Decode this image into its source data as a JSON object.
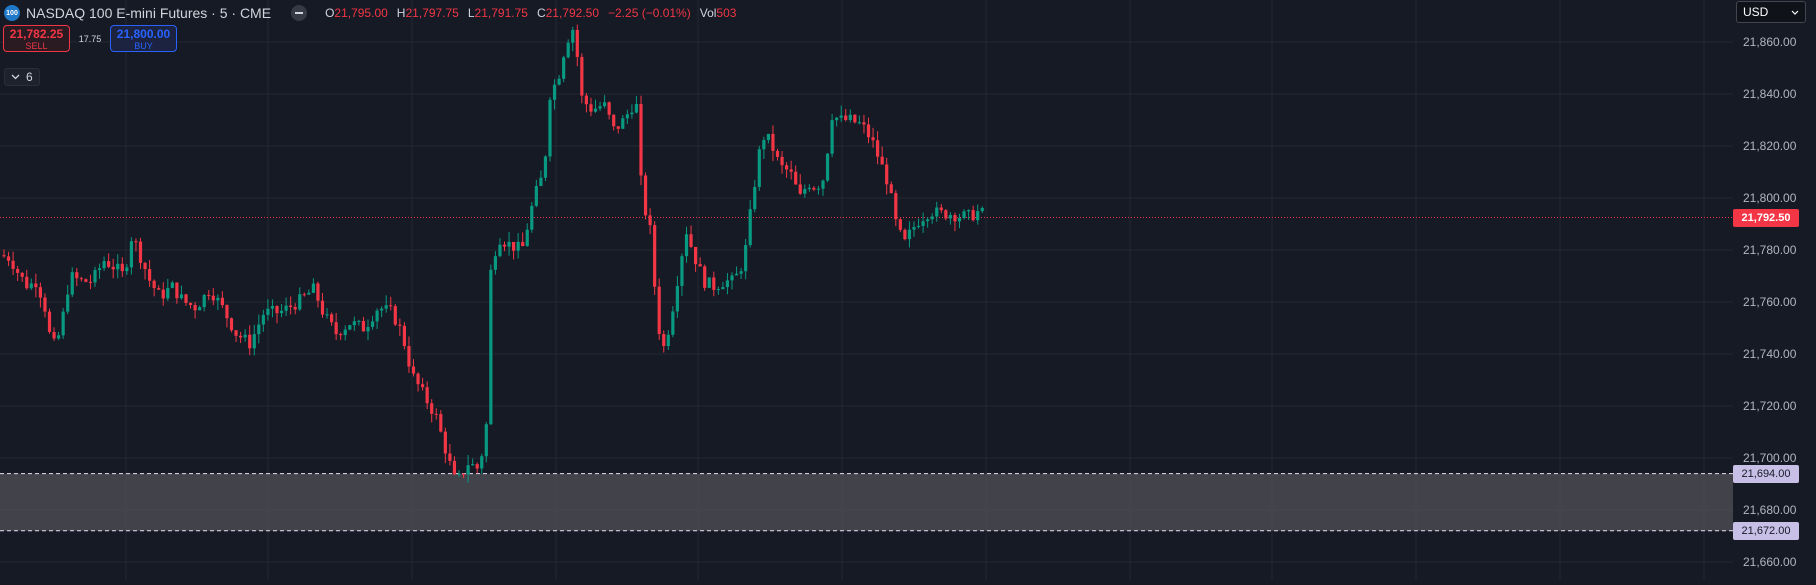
{
  "symbol": {
    "logo_text": "100",
    "title": "NASDAQ 100 E-mini Futures · 5 · CME"
  },
  "ohlc": {
    "open_key": "O",
    "open": "21,795.00",
    "high_key": "H",
    "high": "21,797.75",
    "low_key": "L",
    "low": "21,791.75",
    "close_key": "C",
    "close": "21,792.50",
    "change": "−2.25 (−0.01%)",
    "vol_key": "Vol",
    "volume": "503"
  },
  "trade": {
    "sell_price": "21,782.25",
    "sell_label": "SELL",
    "spread": "17.75",
    "buy_price": "21,800.00",
    "buy_label": "BUY"
  },
  "indicators": {
    "count": "6",
    "toggle_icon": "chevron-down-icon"
  },
  "currency": {
    "selected": "USD"
  },
  "price_axis": {
    "min": 21655,
    "max": 21872,
    "ticks": [
      "21,860.00",
      "21,840.00",
      "21,820.00",
      "21,800.00",
      "21,780.00",
      "21,760.00",
      "21,740.00",
      "21,720.00",
      "21,700.00",
      "21,680.00",
      "21,660.00"
    ]
  },
  "current_price": {
    "label": "21,792.50",
    "value": 21792.5
  },
  "zone": {
    "top_label": "21,694.00",
    "top": 21694,
    "bottom_label": "21,672.00",
    "bottom": 21672
  },
  "colors": {
    "up": "#089981",
    "down": "#f23645",
    "background": "#161a25",
    "grid": "#232834",
    "zone": "#c8bfe7"
  }
}
